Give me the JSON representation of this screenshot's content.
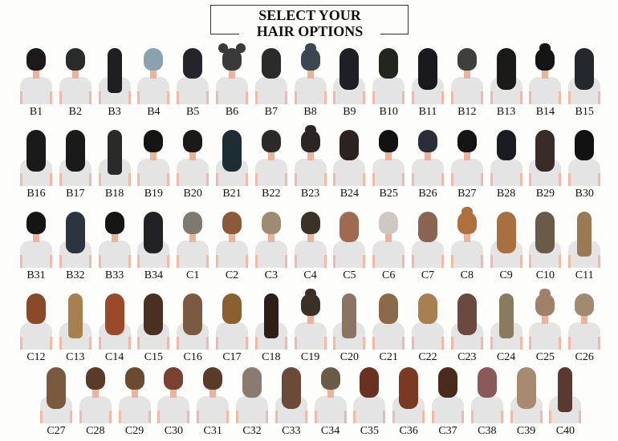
{
  "header": {
    "line1": "SELECT YOUR",
    "line2": "HAIR OPTIONS"
  },
  "rows": [
    {
      "items": [
        {
          "label": "B1",
          "color": "#1e1a1c",
          "style": "short"
        },
        {
          "label": "B2",
          "color": "#2a2c2c",
          "style": "short"
        },
        {
          "label": "B3",
          "color": "#1f1f22",
          "style": "braid"
        },
        {
          "label": "B4",
          "color": "#8aa2b0",
          "style": "short"
        },
        {
          "label": "B5",
          "color": "#25242a",
          "style": "medium"
        },
        {
          "label": "B6",
          "color": "#3a3a3a",
          "style": "buns"
        },
        {
          "label": "B7",
          "color": "#2b2b2b",
          "style": "medium"
        },
        {
          "label": "B8",
          "color": "#3b4650",
          "style": "bun"
        },
        {
          "label": "B9",
          "color": "#1f2026",
          "style": "long"
        },
        {
          "label": "B10",
          "color": "#22261f",
          "style": "medium"
        },
        {
          "label": "B11",
          "color": "#1a1a1e",
          "style": "long"
        },
        {
          "label": "B12",
          "color": "#3e403e",
          "style": "short"
        },
        {
          "label": "B13",
          "color": "#1c1a18",
          "style": "long"
        },
        {
          "label": "B14",
          "color": "#141414",
          "style": "bun"
        },
        {
          "label": "B15",
          "color": "#24272c",
          "style": "long"
        }
      ]
    },
    {
      "items": [
        {
          "label": "B16",
          "color": "#1a1a1a",
          "style": "long"
        },
        {
          "label": "B17",
          "color": "#1a1a1a",
          "style": "long"
        },
        {
          "label": "B18",
          "color": "#2a2a2a",
          "style": "braid"
        },
        {
          "label": "B19",
          "color": "#151515",
          "style": "short"
        },
        {
          "label": "B20",
          "color": "#1a1a1a",
          "style": "short"
        },
        {
          "label": "B21",
          "color": "#1d2d33",
          "style": "long"
        },
        {
          "label": "B22",
          "color": "#2a2a2a",
          "style": "short"
        },
        {
          "label": "B23",
          "color": "#2a2626",
          "style": "bun"
        },
        {
          "label": "B24",
          "color": "#2c2320",
          "style": "medium"
        },
        {
          "label": "B25",
          "color": "#121212",
          "style": "short"
        },
        {
          "label": "B26",
          "color": "#2a2e38",
          "style": "short"
        },
        {
          "label": "B27",
          "color": "#141414",
          "style": "short"
        },
        {
          "label": "B28",
          "color": "#1a1c22",
          "style": "medium"
        },
        {
          "label": "B29",
          "color": "#3a2a28",
          "style": "long"
        },
        {
          "label": "B30",
          "color": "#121212",
          "style": "medium"
        }
      ]
    },
    {
      "items": [
        {
          "label": "B31",
          "color": "#151515",
          "style": "short"
        },
        {
          "label": "B32",
          "color": "#2c3440",
          "style": "long"
        },
        {
          "label": "B33",
          "color": "#161616",
          "style": "short"
        },
        {
          "label": "B34",
          "color": "#222224",
          "style": "long"
        },
        {
          "label": "C1",
          "color": "#7d7a70",
          "style": "short"
        },
        {
          "label": "C2",
          "color": "#8a5a3a",
          "style": "short"
        },
        {
          "label": "C3",
          "color": "#a08a72",
          "style": "short"
        },
        {
          "label": "C4",
          "color": "#3a3228",
          "style": "short"
        },
        {
          "label": "C5",
          "color": "#a06a52",
          "style": "medium"
        },
        {
          "label": "C6",
          "color": "#cfc8c2",
          "style": "short"
        },
        {
          "label": "C7",
          "color": "#8a6452",
          "style": "medium"
        },
        {
          "label": "C8",
          "color": "#b0703e",
          "style": "bun"
        },
        {
          "label": "C9",
          "color": "#a87040",
          "style": "long"
        },
        {
          "label": "C10",
          "color": "#6a5a48",
          "style": "long"
        },
        {
          "label": "C11",
          "color": "#9a7a52",
          "style": "braid"
        }
      ]
    },
    {
      "items": [
        {
          "label": "C12",
          "color": "#8a4a28",
          "style": "medium"
        },
        {
          "label": "C13",
          "color": "#a88050",
          "style": "braid"
        },
        {
          "label": "C14",
          "color": "#9a4a28",
          "style": "long"
        },
        {
          "label": "C15",
          "color": "#4a3020",
          "style": "long"
        },
        {
          "label": "C16",
          "color": "#7a5a40",
          "style": "long"
        },
        {
          "label": "C17",
          "color": "#8a6030",
          "style": "medium"
        },
        {
          "label": "C18",
          "color": "#2e1e18",
          "style": "braid"
        },
        {
          "label": "C19",
          "color": "#3a3028",
          "style": "bun"
        },
        {
          "label": "C20",
          "color": "#8a7464",
          "style": "braid"
        },
        {
          "label": "C21",
          "color": "#8a6a48",
          "style": "medium"
        },
        {
          "label": "C22",
          "color": "#a88050",
          "style": "medium"
        },
        {
          "label": "C23",
          "color": "#6a4a40",
          "style": "long"
        },
        {
          "label": "C24",
          "color": "#8a7a60",
          "style": "braid"
        },
        {
          "label": "C25",
          "color": "#a0806a",
          "style": "bun"
        },
        {
          "label": "C26",
          "color": "#a08a72",
          "style": "short"
        }
      ]
    },
    {
      "items": [
        {
          "label": "C27",
          "color": "#7a5a3e",
          "style": "long"
        },
        {
          "label": "C28",
          "color": "#5a3a28",
          "style": "short"
        },
        {
          "label": "C29",
          "color": "#6a4a30",
          "style": "short"
        },
        {
          "label": "C30",
          "color": "#7a4030",
          "style": "short"
        },
        {
          "label": "C31",
          "color": "#5a3a2a",
          "style": "short"
        },
        {
          "label": "C32",
          "color": "#8a7a70",
          "style": "medium"
        },
        {
          "label": "C33",
          "color": "#6a4a38",
          "style": "long"
        },
        {
          "label": "C34",
          "color": "#6a5a48",
          "style": "short"
        },
        {
          "label": "C35",
          "color": "#6a3020",
          "style": "medium"
        },
        {
          "label": "C36",
          "color": "#7a3a22",
          "style": "long"
        },
        {
          "label": "C37",
          "color": "#4a2a1a",
          "style": "medium"
        },
        {
          "label": "C38",
          "color": "#8a5a5a",
          "style": "medium"
        },
        {
          "label": "C39",
          "color": "#a88a70",
          "style": "long"
        },
        {
          "label": "C40",
          "color": "#5a3a30",
          "style": "braid"
        }
      ]
    }
  ]
}
